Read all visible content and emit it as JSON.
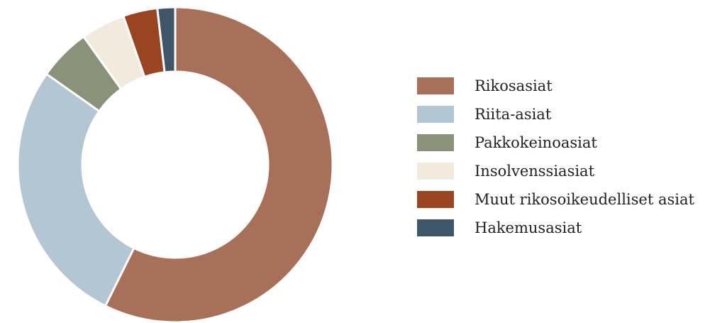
{
  "chart_data": {
    "type": "pie",
    "title": "",
    "categories": [
      "Rikosasiat",
      "Riita-asiat",
      "Pakkokeinoasiat",
      "Insolvenssiasiat",
      "Muut rikosoikeudelliset asiat",
      "Hakemusasiat"
    ],
    "values": [
      56.8,
      27.2,
      5.3,
      4.5,
      3.5,
      1.8
    ],
    "colors": [
      "#a87058",
      "#b3c6d3",
      "#8a937a",
      "#f2eadc",
      "#9a4520",
      "#3e5668"
    ],
    "legend_position": "right",
    "start_angle": "top",
    "direction": "clockwise",
    "hole": true
  }
}
